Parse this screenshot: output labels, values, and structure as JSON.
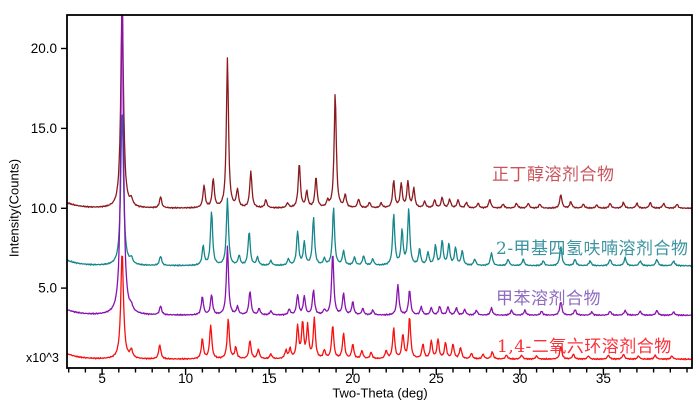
{
  "page": {
    "background": "#ffffff"
  },
  "chart_data": {
    "type": "line",
    "chart_kind": "XRD powder diffraction overlay, 4 stacked traces",
    "title": "",
    "xlabel": "Two-Theta (deg)",
    "ylabel": "Intensity(Counts)",
    "y_multiplier_label": "x10^3",
    "xlim": [
      2.9,
      40.3
    ],
    "ylim": [
      0,
      22.1
    ],
    "grid": false,
    "x_major_ticks": [
      5,
      10,
      15,
      20,
      25,
      30,
      35
    ],
    "x_tick_labels": [
      "5",
      "10",
      "15",
      "20",
      "25",
      "30",
      "35"
    ],
    "x_minor_ticks": {
      "from": 3,
      "to": 40,
      "step": 1
    },
    "y_major_ticks": [
      5,
      10,
      15,
      20
    ],
    "y_tick_labels": [
      "5.0",
      "10.0",
      "15.0",
      "20.0"
    ],
    "axis_color": "#000000",
    "series": [
      {
        "name": "正丁醇溶剂合物",
        "color": "#8b1a1e",
        "label_color": "#c9545c",
        "baseline": 10.0,
        "peaks": [
          [
            6.2,
            13.0
          ],
          [
            6.75,
            0.4
          ],
          [
            8.5,
            0.7
          ],
          [
            11.1,
            1.4
          ],
          [
            11.65,
            1.8
          ],
          [
            12.5,
            9.4
          ],
          [
            13.1,
            1.1
          ],
          [
            13.9,
            2.3
          ],
          [
            14.8,
            0.5
          ],
          [
            16.1,
            0.3
          ],
          [
            16.8,
            2.8
          ],
          [
            17.25,
            1.0
          ],
          [
            17.8,
            1.9
          ],
          [
            18.5,
            0.4
          ],
          [
            18.95,
            7.2
          ],
          [
            19.55,
            0.8
          ],
          [
            20.35,
            0.55
          ],
          [
            21.0,
            0.35
          ],
          [
            21.7,
            0.3
          ],
          [
            22.45,
            1.7
          ],
          [
            22.9,
            1.5
          ],
          [
            23.3,
            1.6
          ],
          [
            23.65,
            1.2
          ],
          [
            24.3,
            0.4
          ],
          [
            24.9,
            0.5
          ],
          [
            25.35,
            0.65
          ],
          [
            25.8,
            0.55
          ],
          [
            26.3,
            0.5
          ],
          [
            26.8,
            0.35
          ],
          [
            27.5,
            0.3
          ],
          [
            28.2,
            0.55
          ],
          [
            29.0,
            0.25
          ],
          [
            29.8,
            0.3
          ],
          [
            30.5,
            0.3
          ],
          [
            31.2,
            0.25
          ],
          [
            32.45,
            0.85
          ],
          [
            33.05,
            0.4
          ],
          [
            33.8,
            0.25
          ],
          [
            34.6,
            0.2
          ],
          [
            35.4,
            0.3
          ],
          [
            36.2,
            0.35
          ],
          [
            37.0,
            0.3
          ],
          [
            37.8,
            0.35
          ],
          [
            38.6,
            0.3
          ],
          [
            39.4,
            0.25
          ]
        ]
      },
      {
        "name": "2-甲基四氢呋喃溶剂合物",
        "color": "#15868b",
        "label_color": "#3b93a0",
        "baseline": 6.4,
        "peaks": [
          [
            6.2,
            9.8
          ],
          [
            6.75,
            0.35
          ],
          [
            8.5,
            0.6
          ],
          [
            11.05,
            1.2
          ],
          [
            11.55,
            3.4
          ],
          [
            12.5,
            4.2
          ],
          [
            13.2,
            0.6
          ],
          [
            13.8,
            2.1
          ],
          [
            14.3,
            0.5
          ],
          [
            15.1,
            0.3
          ],
          [
            16.15,
            0.4
          ],
          [
            16.7,
            2.1
          ],
          [
            17.1,
            1.4
          ],
          [
            17.65,
            3.0
          ],
          [
            18.3,
            0.4
          ],
          [
            18.85,
            3.6
          ],
          [
            19.45,
            0.9
          ],
          [
            20.1,
            0.5
          ],
          [
            20.65,
            0.6
          ],
          [
            21.2,
            0.4
          ],
          [
            22.45,
            3.2
          ],
          [
            22.95,
            2.1
          ],
          [
            23.35,
            3.5
          ],
          [
            24.0,
            1.0
          ],
          [
            24.5,
            0.8
          ],
          [
            24.95,
            1.2
          ],
          [
            25.35,
            1.5
          ],
          [
            25.75,
            1.3
          ],
          [
            26.15,
            1.1
          ],
          [
            26.55,
            0.9
          ],
          [
            27.3,
            0.4
          ],
          [
            28.3,
            0.8
          ],
          [
            29.3,
            0.4
          ],
          [
            30.2,
            0.4
          ],
          [
            31.4,
            0.3
          ],
          [
            32.45,
            1.2
          ],
          [
            33.3,
            0.4
          ],
          [
            34.2,
            0.3
          ],
          [
            35.4,
            0.4
          ],
          [
            36.3,
            0.5
          ],
          [
            37.2,
            0.3
          ],
          [
            38.2,
            0.4
          ],
          [
            39.2,
            0.3
          ]
        ]
      },
      {
        "name": "甲苯溶剂合物",
        "color": "#8912ae",
        "label_color": "#8e6bbf",
        "baseline": 3.3,
        "peaks": [
          [
            6.2,
            19.5
          ],
          [
            6.75,
            0.3
          ],
          [
            8.5,
            0.55
          ],
          [
            11.0,
            1.15
          ],
          [
            11.55,
            1.25
          ],
          [
            12.5,
            4.3
          ],
          [
            13.1,
            0.5
          ],
          [
            13.85,
            1.5
          ],
          [
            14.4,
            0.4
          ],
          [
            15.1,
            0.25
          ],
          [
            16.2,
            0.35
          ],
          [
            16.7,
            1.25
          ],
          [
            17.1,
            1.15
          ],
          [
            17.65,
            1.55
          ],
          [
            18.3,
            0.3
          ],
          [
            18.8,
            3.9
          ],
          [
            19.45,
            1.35
          ],
          [
            20.0,
            0.8
          ],
          [
            20.6,
            0.4
          ],
          [
            21.2,
            0.3
          ],
          [
            22.7,
            1.9
          ],
          [
            23.4,
            1.55
          ],
          [
            24.1,
            0.5
          ],
          [
            24.7,
            0.45
          ],
          [
            25.2,
            0.55
          ],
          [
            25.7,
            0.5
          ],
          [
            26.2,
            0.45
          ],
          [
            26.7,
            0.35
          ],
          [
            27.4,
            0.3
          ],
          [
            28.3,
            0.45
          ],
          [
            29.5,
            0.3
          ],
          [
            30.3,
            0.3
          ],
          [
            31.3,
            0.25
          ],
          [
            32.45,
            0.85
          ],
          [
            33.3,
            0.35
          ],
          [
            34.3,
            0.2
          ],
          [
            35.4,
            0.25
          ],
          [
            36.3,
            0.3
          ],
          [
            37.2,
            0.25
          ],
          [
            38.2,
            0.3
          ],
          [
            39.2,
            0.2
          ]
        ]
      },
      {
        "name": "1,4-二氧六环溶剂合物",
        "color": "#f8100f",
        "label_color": "#fb2f38",
        "baseline": 0.55,
        "peaks": [
          [
            6.2,
            6.7
          ],
          [
            6.75,
            0.5
          ],
          [
            8.45,
            0.9
          ],
          [
            11.0,
            1.25
          ],
          [
            11.5,
            2.1
          ],
          [
            12.55,
            2.5
          ],
          [
            13.0,
            0.7
          ],
          [
            13.85,
            1.15
          ],
          [
            14.35,
            0.6
          ],
          [
            15.1,
            0.3
          ],
          [
            16.0,
            0.5
          ],
          [
            16.25,
            0.6
          ],
          [
            16.7,
            2.0
          ],
          [
            17.0,
            2.2
          ],
          [
            17.3,
            2.0
          ],
          [
            17.7,
            2.5
          ],
          [
            18.3,
            0.5
          ],
          [
            18.8,
            2.1
          ],
          [
            19.45,
            1.6
          ],
          [
            20.0,
            0.9
          ],
          [
            20.55,
            0.5
          ],
          [
            21.1,
            0.4
          ],
          [
            22.0,
            0.5
          ],
          [
            22.45,
            1.9
          ],
          [
            23.0,
            1.5
          ],
          [
            23.4,
            2.6
          ],
          [
            24.2,
            0.9
          ],
          [
            24.7,
            1.1
          ],
          [
            25.1,
            1.2
          ],
          [
            25.55,
            1.0
          ],
          [
            26.0,
            0.9
          ],
          [
            26.45,
            0.7
          ],
          [
            27.1,
            0.35
          ],
          [
            27.8,
            0.3
          ],
          [
            28.35,
            0.45
          ],
          [
            29.2,
            0.25
          ],
          [
            30.1,
            0.25
          ],
          [
            31.0,
            0.2
          ],
          [
            32.45,
            0.8
          ],
          [
            33.2,
            0.3
          ],
          [
            34.1,
            0.2
          ],
          [
            35.3,
            0.25
          ],
          [
            36.2,
            0.3
          ],
          [
            37.1,
            0.2
          ],
          [
            38.1,
            0.25
          ],
          [
            39.1,
            0.2
          ]
        ]
      }
    ],
    "annotations": [
      {
        "text": "正丁醇溶剂合物",
        "meaning": "n-butanol solvate"
      },
      {
        "text": "2-甲基四氢呋喃溶剂合物",
        "meaning": "2-methyltetrahydrofuran solvate"
      },
      {
        "text": "甲苯溶剂合物",
        "meaning": "toluene solvate"
      },
      {
        "text": "1,4-二氧六环溶剂合物",
        "meaning": "1,4-dioxane solvate"
      }
    ],
    "legend_position": "inline-right-of-each-trace"
  }
}
